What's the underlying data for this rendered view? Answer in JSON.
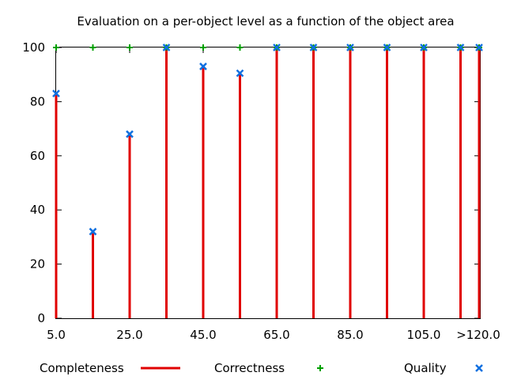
{
  "chart_data": {
    "type": "bar",
    "title": "Evaluation on a per-object level as a function of the object area",
    "xlabel": "",
    "ylabel": "",
    "ylim": [
      0,
      100
    ],
    "yticks": [
      "0",
      "20",
      "40",
      "60",
      "80",
      "100"
    ],
    "xticks": [
      "5.0",
      "25.0",
      "45.0",
      "65.0",
      "85.0",
      "105.0",
      ">120.0"
    ],
    "categories": [
      "5",
      "15",
      "25",
      "35",
      "45",
      "55",
      "65",
      "75",
      "85",
      "95",
      "105",
      "115",
      ">120"
    ],
    "series": [
      {
        "name": "Completeness",
        "style": "impulse",
        "color": "#e00000",
        "values": [
          83,
          32,
          68,
          100,
          93,
          90.5,
          100,
          100,
          100,
          100,
          100,
          100,
          100
        ]
      },
      {
        "name": "Correctness",
        "style": "plus",
        "color": "#00a000",
        "values": [
          100,
          100,
          100,
          100,
          100,
          100,
          100,
          100,
          100,
          100,
          100,
          100,
          100
        ]
      },
      {
        "name": "Quality",
        "style": "cross",
        "color": "#1070e0",
        "values": [
          83,
          32,
          68,
          100,
          93,
          90.5,
          100,
          100,
          100,
          100,
          100,
          100,
          100
        ]
      }
    ],
    "grid": false,
    "legend_position": "bottom"
  }
}
